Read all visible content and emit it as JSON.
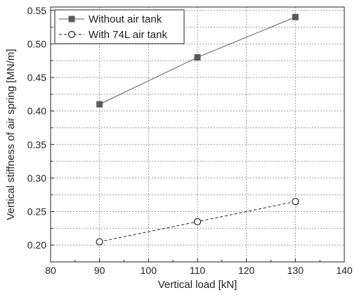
{
  "chart_data": {
    "type": "line",
    "title": "",
    "xlabel": "Vertical load [kN]",
    "ylabel": "Vertical stiffness of air spring [MN/m]",
    "xlim": [
      80,
      140
    ],
    "ylim": [
      0.175,
      0.555
    ],
    "xticks": [
      80,
      90,
      100,
      110,
      120,
      130,
      140
    ],
    "xtick_labels": [
      "80",
      "90",
      "100",
      "110",
      "120",
      "130",
      "140"
    ],
    "yticks": [
      0.2,
      0.25,
      0.3,
      0.35,
      0.4,
      0.45,
      0.5,
      0.55
    ],
    "ytick_labels": [
      "0.20",
      "0.25",
      "0.30",
      "0.35",
      "0.40",
      "0.45",
      "0.50",
      "0.55"
    ],
    "grid": true,
    "legend_position": "top-left",
    "series": [
      {
        "name": "Without air tank",
        "x": [
          90,
          110,
          130
        ],
        "values": [
          0.41,
          0.48,
          0.54
        ],
        "line_style": "solid",
        "marker": "filled-square",
        "color": "#5a5a5a"
      },
      {
        "name": "With 74L air tank",
        "x": [
          90,
          110,
          130
        ],
        "values": [
          0.205,
          0.235,
          0.265
        ],
        "line_style": "dashed",
        "marker": "open-circle",
        "color": "#222222"
      }
    ]
  }
}
